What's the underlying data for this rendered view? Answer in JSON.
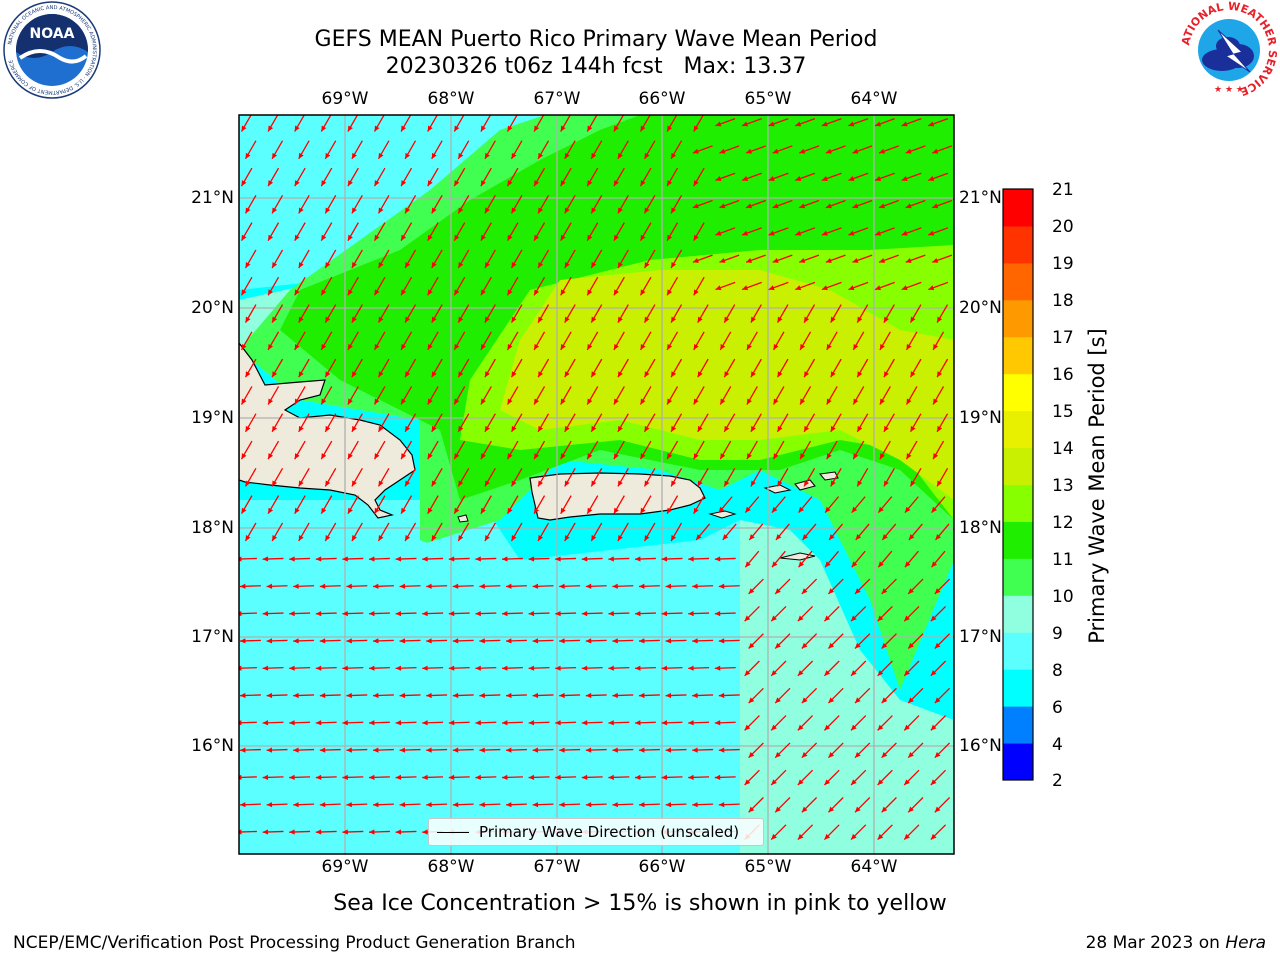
{
  "header": {
    "title_line1": "GEFS MEAN Puerto Rico Primary Wave Mean Period",
    "title_line2": "20230326 t06z 144h fcst   Max: 13.37"
  },
  "logos": {
    "noaa_label": "NOAA",
    "noaa_ring_text": "NATIONAL OCEANIC AND ATMOSPHERIC ADMINISTRATION · U.S. DEPARTMENT OF COMMERCE",
    "nws_ring_text": "NATIONAL WEATHER SERVICE"
  },
  "map": {
    "lon_ticks": [
      "69°W",
      "68°W",
      "67°W",
      "66°W",
      "65°W",
      "64°W"
    ],
    "lat_ticks": [
      "21°N",
      "20°N",
      "19°N",
      "18°N",
      "17°N",
      "16°N"
    ],
    "lon_range": [
      -70.0,
      -63.25
    ],
    "lat_range": [
      15.0,
      21.75
    ],
    "grid": true,
    "arrow_color": "#ff0000",
    "land_color": "#efebdc"
  },
  "colorbar": {
    "title": "Primary Wave Mean Period [s]",
    "levels": [
      "2",
      "4",
      "6",
      "8",
      "9",
      "10",
      "11",
      "12",
      "13",
      "14",
      "15",
      "16",
      "17",
      "18",
      "19",
      "20",
      "21"
    ],
    "colors": [
      "#0000ff",
      "#0080ff",
      "#00ffff",
      "#5cffff",
      "#90ffe0",
      "#40ff50",
      "#20ee00",
      "#88ff00",
      "#c8f000",
      "#e8f000",
      "#ffff00",
      "#ffc800",
      "#ff9900",
      "#ff6600",
      "#ff3300",
      "#ff0000"
    ]
  },
  "legend": {
    "label": "Primary Wave Direction (unscaled)"
  },
  "notes": {
    "sea_ice": "Sea Ice Concentration > 15% is shown in pink to yellow"
  },
  "footer": {
    "left": "NCEP/EMC/Verification Post Processing Product Generation Branch",
    "date": "28 Mar 2023 on ",
    "host": "Hera"
  }
}
